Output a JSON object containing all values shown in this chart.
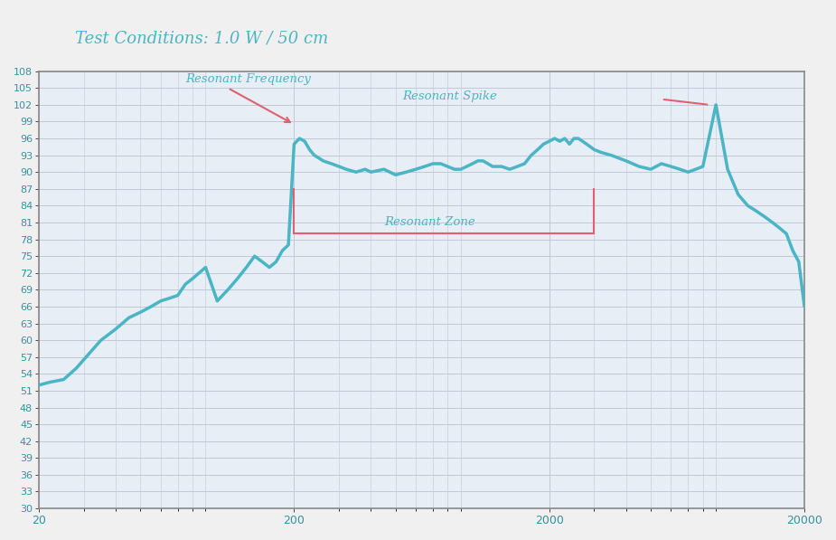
{
  "title": "Test Conditions: 1.0 W / 50 cm",
  "title_color": "#4ab5c4",
  "title_fontsize": 13,
  "background_color": "#f5f5f5",
  "plot_bg_color": "#e8eef5",
  "grid_color": "#c0c8d8",
  "line_color": "#4ab5c4",
  "line_width": 2.5,
  "annotation_color": "#e06070",
  "annotation_text_color": "#4ab5c4",
  "ylim": [
    30,
    108
  ],
  "yticks": [
    30,
    33,
    36,
    39,
    42,
    45,
    48,
    51,
    54,
    57,
    60,
    63,
    66,
    69,
    72,
    75,
    78,
    81,
    84,
    87,
    90,
    93,
    96,
    99,
    102,
    105,
    108
  ],
  "xticks_log": [
    20,
    200,
    2000,
    20000
  ],
  "xlim_log": [
    20,
    20000
  ],
  "resonant_freq_label": "Resonant Frequency",
  "resonant_spike_label": "Resonant Spike",
  "resonant_zone_label": "Resonant Zone",
  "freq_data": [
    20,
    22,
    25,
    28,
    32,
    35,
    40,
    45,
    50,
    55,
    60,
    65,
    70,
    75,
    80,
    90,
    100,
    110,
    120,
    130,
    140,
    150,
    160,
    170,
    180,
    190,
    200,
    210,
    220,
    230,
    240,
    250,
    260,
    280,
    300,
    320,
    350,
    380,
    400,
    450,
    500,
    550,
    600,
    650,
    700,
    750,
    800,
    850,
    900,
    950,
    1000,
    1050,
    1100,
    1150,
    1200,
    1300,
    1400,
    1500,
    1600,
    1700,
    1800,
    1900,
    2000,
    2100,
    2200,
    2300,
    2400,
    2500,
    2600,
    2700,
    2800,
    2900,
    3000,
    3200,
    3500,
    4000,
    4500,
    5000,
    5500,
    6000,
    6500,
    7000,
    7500,
    8000,
    9000,
    10000,
    11000,
    12000,
    13000,
    14000,
    15000,
    16000,
    17000,
    18000,
    19000,
    20000
  ],
  "spl_data": [
    52,
    52.5,
    53,
    55,
    58,
    60,
    62,
    64,
    65,
    66,
    67,
    67.5,
    68,
    70,
    71,
    73,
    67,
    69,
    71,
    73,
    75,
    74,
    73,
    74,
    76,
    77,
    95,
    96,
    95.5,
    94,
    93,
    92.5,
    92,
    91.5,
    91,
    90.5,
    90,
    90.5,
    90,
    90.5,
    89.5,
    90,
    90.5,
    91,
    91.5,
    91.5,
    91,
    90.5,
    90.5,
    91,
    91.5,
    92,
    92,
    91.5,
    91,
    91,
    90.5,
    91,
    91.5,
    93,
    94,
    95,
    95.5,
    96,
    95.5,
    96,
    95,
    96,
    96,
    95.5,
    95,
    94.5,
    94,
    93.5,
    93,
    92,
    91,
    90.5,
    91.5,
    91,
    90.5,
    90,
    90.5,
    91,
    102,
    90.5,
    86,
    84,
    83,
    82,
    81,
    80,
    79,
    76,
    74,
    66
  ]
}
